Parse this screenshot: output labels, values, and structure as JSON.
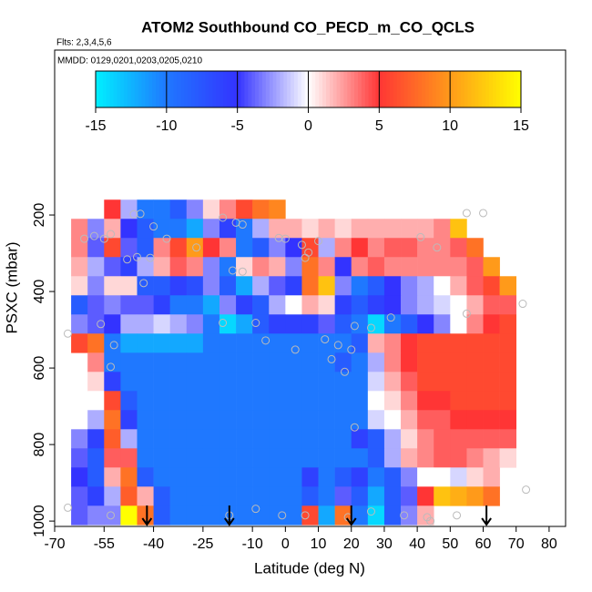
{
  "chart_data": {
    "type": "heatmap",
    "title": "ATOM2 Southbound CO_PECD_m_CO_QCLS",
    "subtitle": "Flts: 2,3,4,5,6",
    "annotation": "MMDD: 0129,0201,0203,0205,0210",
    "x_label": "Latitude (deg N)",
    "y_label": "PSXC (mbar)",
    "xlim": [
      -70,
      85
    ],
    "ylim": [
      1014,
      -231
    ],
    "xticks": [
      -70,
      -55,
      -40,
      -25,
      -10,
      0,
      10,
      20,
      30,
      40,
      50,
      60,
      70,
      80
    ],
    "yticks": [
      200,
      400,
      600,
      800,
      1000
    ],
    "xbins": [
      -70,
      -65,
      -60,
      -55,
      -50,
      -45,
      -40,
      -35,
      -30,
      -25,
      -20,
      -15,
      -10,
      -5,
      0,
      5,
      10,
      15,
      20,
      25,
      30,
      35,
      40,
      45,
      50,
      55,
      60,
      65,
      70,
      75
    ],
    "ybins": [
      160,
      210,
      260,
      310,
      360,
      410,
      460,
      510,
      560,
      610,
      660,
      710,
      760,
      810,
      860,
      910,
      960,
      1010
    ],
    "z": [
      [
        null,
        null,
        null,
        5,
        -2,
        -10,
        -10,
        -8,
        -3,
        1,
        3,
        6,
        8,
        9,
        null,
        null,
        null,
        null,
        null,
        null,
        null,
        null,
        null,
        null,
        null,
        null,
        null,
        null,
        null
      ],
      [
        null,
        3,
        -3,
        2,
        -5,
        -8,
        -10,
        -10,
        -12,
        -3,
        -6,
        -10,
        -2,
        2,
        2,
        1,
        2,
        1,
        2,
        2,
        2,
        2,
        2,
        3,
        12,
        null,
        null,
        null,
        null
      ],
      [
        null,
        3,
        -4,
        6,
        -4,
        -8,
        3,
        6,
        10,
        5,
        3,
        -10,
        -8,
        -3,
        -5,
        6,
        -2,
        3,
        5,
        3,
        4,
        4,
        3,
        3,
        4,
        8,
        null,
        null,
        null
      ],
      [
        null,
        2,
        -2,
        -4,
        -6,
        -2,
        2,
        4,
        3,
        -3,
        -10,
        1,
        3,
        2,
        -3,
        8,
        3,
        -5,
        3,
        4,
        3,
        3,
        3,
        3,
        3,
        4,
        10,
        null,
        null
      ],
      [
        null,
        1,
        -3,
        1,
        1,
        -8,
        -8,
        -6,
        -7,
        -3,
        -8,
        -12,
        -2,
        -4,
        -6,
        8,
        12,
        -3,
        -10,
        -8,
        -5,
        -3,
        -2,
        0,
        2,
        4,
        6,
        10,
        null
      ],
      [
        null,
        -8,
        -4,
        -3,
        -4,
        -4,
        -6,
        -10,
        -10,
        -12,
        -3,
        -6,
        -8,
        -2,
        0,
        2,
        1,
        -6,
        -8,
        -6,
        -5,
        -3,
        -2,
        -1,
        0,
        2,
        4,
        4,
        null
      ],
      [
        null,
        -3,
        -4,
        -5,
        -2,
        -2,
        -1,
        -2,
        -3,
        -10,
        -14,
        -12,
        -8,
        -6,
        -6,
        -6,
        -4,
        -8,
        -10,
        -14,
        -10,
        -8,
        -5,
        -3,
        0,
        3,
        5,
        6,
        null
      ],
      [
        null,
        6,
        8,
        -10,
        -12,
        -12,
        -12,
        -12,
        -12,
        -10,
        -10,
        -10,
        -10,
        -10,
        -10,
        -10,
        -10,
        -10,
        -8,
        2,
        3,
        5,
        6,
        6,
        6,
        6,
        6,
        6,
        null
      ],
      [
        null,
        null,
        3,
        -10,
        -10,
        -10,
        -10,
        -10,
        -10,
        -10,
        -10,
        -10,
        -10,
        -10,
        -10,
        -10,
        -10,
        -8,
        -10,
        -2,
        3,
        5,
        6,
        6,
        6,
        6,
        6,
        6,
        null
      ],
      [
        null,
        null,
        1,
        -6,
        -10,
        -10,
        -10,
        -10,
        -10,
        -10,
        -10,
        -10,
        -10,
        -10,
        -10,
        -10,
        -10,
        -10,
        -10,
        -1,
        2,
        4,
        6,
        6,
        6,
        6,
        6,
        6,
        null
      ],
      [
        null,
        null,
        0,
        6,
        -8,
        -10,
        -10,
        -10,
        -10,
        -10,
        -10,
        -10,
        -10,
        -10,
        -10,
        -10,
        -10,
        -10,
        -10,
        0,
        1,
        3,
        5,
        5,
        6,
        6,
        6,
        6,
        null
      ],
      [
        null,
        null,
        -2,
        8,
        -6,
        -10,
        -10,
        -10,
        -10,
        -10,
        -10,
        -10,
        -10,
        -10,
        -10,
        -10,
        -10,
        -10,
        -10,
        -1,
        0,
        2,
        4,
        4,
        5,
        5,
        5,
        5,
        null
      ],
      [
        null,
        -3,
        -6,
        7,
        -2,
        -10,
        -10,
        -10,
        -10,
        -10,
        -10,
        -10,
        -10,
        -10,
        -10,
        -10,
        -10,
        -10,
        -6,
        -8,
        -2,
        1,
        3,
        4,
        4,
        4,
        4,
        4,
        null
      ],
      [
        null,
        -4,
        -8,
        4,
        4,
        -10,
        -10,
        -10,
        -10,
        -10,
        -10,
        -10,
        -10,
        -10,
        -10,
        -10,
        -10,
        -10,
        -10,
        -8,
        -2,
        2,
        3,
        4,
        4,
        3,
        2,
        1,
        null
      ],
      [
        null,
        -5,
        -8,
        2,
        8,
        -8,
        -10,
        -10,
        -10,
        -10,
        -10,
        -10,
        -10,
        -10,
        -10,
        -6,
        -10,
        -8,
        -6,
        -10,
        -8,
        -3,
        0,
        0,
        -1,
        1,
        2,
        null,
        null
      ],
      [
        null,
        -4,
        -6,
        -2,
        7,
        2,
        -8,
        -10,
        -10,
        -10,
        -10,
        -10,
        -10,
        -10,
        -10,
        -8,
        -10,
        -4,
        -8,
        -12,
        -8,
        -4,
        5,
        12,
        11,
        10,
        8,
        null,
        null
      ],
      [
        null,
        -4,
        -3,
        -3,
        15,
        8,
        -8,
        -10,
        -10,
        -10,
        -10,
        -10,
        -10,
        -10,
        -10,
        6,
        -12,
        8,
        -10,
        -14,
        -8,
        -3,
        2,
        null,
        null,
        null,
        null,
        null,
        null
      ]
    ],
    "colorscale": [
      [
        -15,
        "#00f0ff"
      ],
      [
        -10,
        "#1f78ff"
      ],
      [
        -5,
        "#3333ff"
      ],
      [
        0,
        "#ffffff"
      ],
      [
        5,
        "#ff3535"
      ],
      [
        10,
        "#ff9a1a"
      ],
      [
        15,
        "#ffff00"
      ]
    ],
    "colorbar_ticks": [
      -15,
      -10,
      -5,
      0,
      5,
      10,
      15
    ],
    "points": {
      "color": "#bbbbbb",
      "x": [
        -61,
        -58,
        -55,
        -53,
        -46,
        -44,
        -40,
        -36,
        -45,
        -48,
        -41,
        -43,
        -56,
        -52,
        -53,
        -66,
        -27,
        -19,
        -13,
        -15,
        -16,
        -13,
        -19,
        -9,
        -2,
        0,
        5,
        7,
        6,
        10,
        -6,
        3,
        12,
        16,
        14,
        20,
        18,
        26,
        21,
        32,
        41,
        46,
        55,
        55,
        60,
        72,
        21,
        -66,
        -53,
        -17,
        -9,
        -1,
        6,
        19,
        26,
        36,
        44,
        52,
        73,
        43
      ],
      "y": [
        262,
        255,
        262,
        250,
        198,
        197,
        230,
        262,
        310,
        316,
        312,
        378,
        485,
        540,
        597,
        510,
        285,
        207,
        225,
        220,
        345,
        348,
        482,
        482,
        260,
        262,
        278,
        298,
        312,
        268,
        528,
        552,
        525,
        540,
        577,
        552,
        610,
        495,
        490,
        468,
        258,
        285,
        458,
        195,
        195,
        432,
        755,
        965,
        985,
        985,
        968,
        985,
        985,
        990,
        975,
        985,
        1000,
        985,
        918,
        990
      ]
    },
    "arrows_x": [
      -42,
      -17,
      20,
      61
    ]
  }
}
